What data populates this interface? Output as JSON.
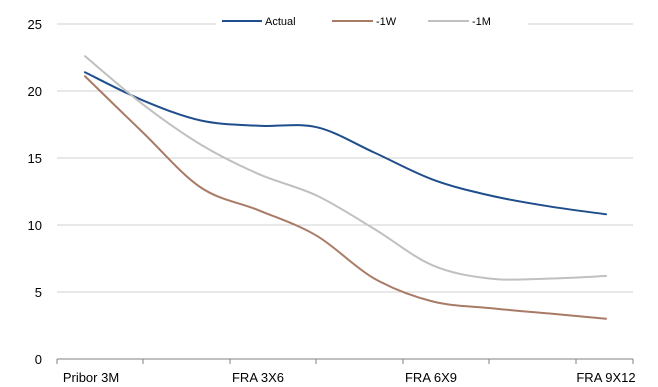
{
  "chart_data": {
    "type": "line",
    "categories": [
      "Pribor 3M",
      "",
      "",
      "FRA 3X6",
      "",
      "",
      "FRA 6X9",
      "",
      "",
      "FRA 9X12"
    ],
    "x_tick_labels": [
      "Pribor 3M",
      "FRA 3X6",
      "FRA 6X9",
      "FRA 9X12"
    ],
    "series": [
      {
        "name": "Actual",
        "color": "#1f4e8c",
        "values": [
          21.4,
          19.3,
          17.8,
          17.4,
          17.3,
          15.4,
          13.4,
          12.2,
          11.4,
          10.8
        ]
      },
      {
        "name": "-1W",
        "color": "#a97b66",
        "values": [
          21.1,
          16.9,
          12.8,
          11.1,
          9.2,
          6.0,
          4.3,
          3.8,
          3.4,
          3.0
        ]
      },
      {
        "name": "-1M",
        "color": "#c0c0c0",
        "values": [
          22.6,
          19.0,
          16.0,
          13.8,
          12.2,
          9.7,
          7.0,
          6.0,
          6.0,
          6.2
        ]
      }
    ],
    "yticks": [
      0,
      5,
      10,
      15,
      20,
      25
    ],
    "ylim": [
      0,
      25
    ],
    "grid": true,
    "legend_position": "top-center",
    "title": "",
    "xlabel": "",
    "ylabel": ""
  }
}
